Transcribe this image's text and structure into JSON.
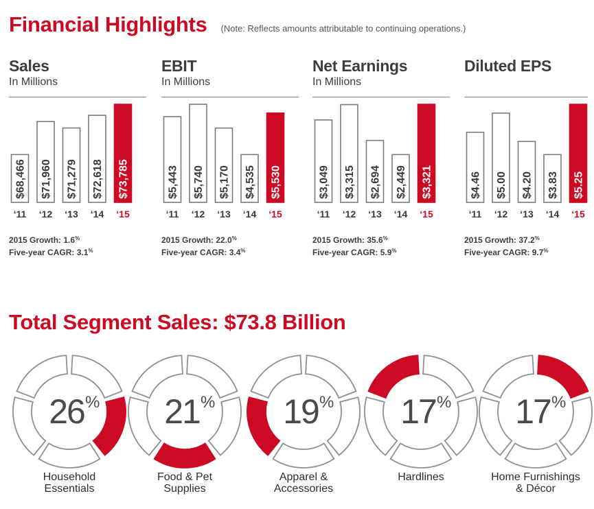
{
  "header": {
    "title": "Financial Highlights",
    "note": "(Note: Reflects amounts attributable to continuing operations.)"
  },
  "colors": {
    "accent": "#cc0a23",
    "dark": "#3d3d3d",
    "bar_outline": "#7a7a7a",
    "ring_gray": "#8f8f8f"
  },
  "panels": [
    {
      "title": "Sales",
      "subtitle": "In Millions",
      "growth": "2015 Growth: 1.6",
      "cagr": "Five-year CAGR: 3.1",
      "pct": "%"
    },
    {
      "title": "EBIT",
      "subtitle": "In Millions",
      "growth": "2015 Growth: 22.0",
      "cagr": "Five-year CAGR: 3.4",
      "pct": "%"
    },
    {
      "title": "Net Earnings",
      "subtitle": "In Millions",
      "growth": "2015 Growth: 35.6",
      "cagr": "Five-year CAGR: 5.9",
      "pct": "%"
    },
    {
      "title": "Diluted EPS",
      "subtitle": "",
      "growth": "2015 Growth: 37.2",
      "cagr": "Five-year CAGR: 9.7",
      "pct": "%"
    }
  ],
  "segments_section": {
    "title": "Total Segment Sales: $73.8 Billion"
  },
  "chart_data": [
    {
      "type": "bar",
      "title": "Sales",
      "subtitle": "In Millions",
      "categories": [
        "‘11",
        "‘12",
        "‘13",
        "‘14",
        "‘15"
      ],
      "values": [
        68466,
        71960,
        71279,
        72618,
        73785
      ],
      "labels": [
        "$68,466",
        "$71,960",
        "$71,279",
        "$72,618",
        "$73,785"
      ],
      "highlight_index": 4
    },
    {
      "type": "bar",
      "title": "EBIT",
      "subtitle": "In Millions",
      "categories": [
        "‘11",
        "‘12",
        "‘13",
        "‘14",
        "‘15"
      ],
      "values": [
        5443,
        5740,
        5170,
        4535,
        5530
      ],
      "labels": [
        "$5,443",
        "$5,740",
        "$5,170",
        "$4,535",
        "$5,530"
      ],
      "highlight_index": 4
    },
    {
      "type": "bar",
      "title": "Net Earnings",
      "subtitle": "In Millions",
      "categories": [
        "‘11",
        "‘12",
        "‘13",
        "‘14",
        "‘15"
      ],
      "values": [
        3049,
        3315,
        2694,
        2449,
        3321
      ],
      "labels": [
        "$3,049",
        "$3,315",
        "$2,694",
        "$2,449",
        "$3,321"
      ],
      "highlight_index": 4
    },
    {
      "type": "bar",
      "title": "Diluted EPS",
      "categories": [
        "‘11",
        "‘12",
        "‘13",
        "‘14",
        "‘15"
      ],
      "values": [
        4.46,
        5.0,
        4.2,
        3.83,
        5.25
      ],
      "labels": [
        "$4.46",
        "$5.00",
        "$4.20",
        "$3.83",
        "$5.25"
      ],
      "highlight_index": 4
    },
    {
      "type": "pie",
      "title": "Total Segment Sales: $73.8 Billion",
      "categories": [
        "Household Essentials",
        "Food & Pet Supplies",
        "Apparel & Accessories",
        "Hardlines",
        "Home Furnishings & Décor"
      ],
      "values": [
        26,
        21,
        19,
        17,
        17
      ],
      "labels": [
        "26",
        "21",
        "19",
        "17",
        "17"
      ],
      "unit": "%",
      "label_lines": [
        [
          "Household",
          "Essentials"
        ],
        [
          "Food & Pet",
          "Supplies"
        ],
        [
          "Apparel &",
          "Accessories"
        ],
        [
          "Hardlines"
        ],
        [
          "Home Furnishings",
          "& Décor"
        ]
      ],
      "highlight_segment": [
        1,
        2,
        3,
        4,
        0
      ]
    }
  ]
}
